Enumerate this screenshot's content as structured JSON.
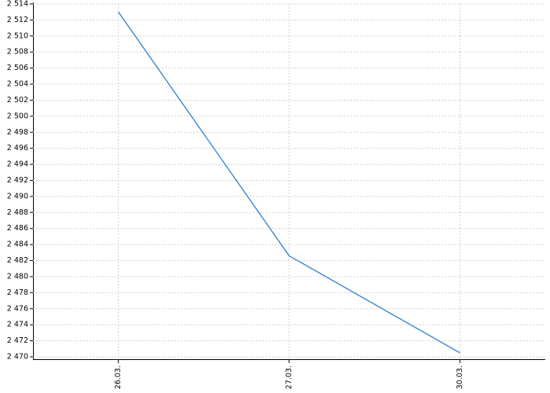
{
  "chart_data": {
    "type": "line",
    "categories": [
      "26.03.",
      "27.03.",
      "30.03."
    ],
    "series": [
      {
        "name": null,
        "color": "#3a87d4",
        "values": [
          2513.0,
          2482.6,
          2470.5
        ]
      }
    ],
    "ylim": [
      2470,
      2514
    ],
    "yticks": [
      {
        "value": 2470,
        "label": "2 470"
      },
      {
        "value": 2472,
        "label": "2 472"
      },
      {
        "value": 2474,
        "label": "2 474"
      },
      {
        "value": 2476,
        "label": "2 476"
      },
      {
        "value": 2478,
        "label": "2 478"
      },
      {
        "value": 2480,
        "label": "2 480"
      },
      {
        "value": 2482,
        "label": "2 482"
      },
      {
        "value": 2484,
        "label": "2 484"
      },
      {
        "value": 2486,
        "label": "2 486"
      },
      {
        "value": 2488,
        "label": "2 488"
      },
      {
        "value": 2490,
        "label": "2 490"
      },
      {
        "value": 2492,
        "label": "2 492"
      },
      {
        "value": 2494,
        "label": "2 494"
      },
      {
        "value": 2496,
        "label": "2 496"
      },
      {
        "value": 2498,
        "label": "2 498"
      },
      {
        "value": 2500,
        "label": "2 500"
      },
      {
        "value": 2502,
        "label": "2 502"
      },
      {
        "value": 2504,
        "label": "2 504"
      },
      {
        "value": 2506,
        "label": "2 506"
      },
      {
        "value": 2508,
        "label": "2 508"
      },
      {
        "value": 2510,
        "label": "2 510"
      },
      {
        "value": 2512,
        "label": "2 512"
      },
      {
        "value": 2514,
        "label": "2 514"
      }
    ],
    "grid": true
  }
}
